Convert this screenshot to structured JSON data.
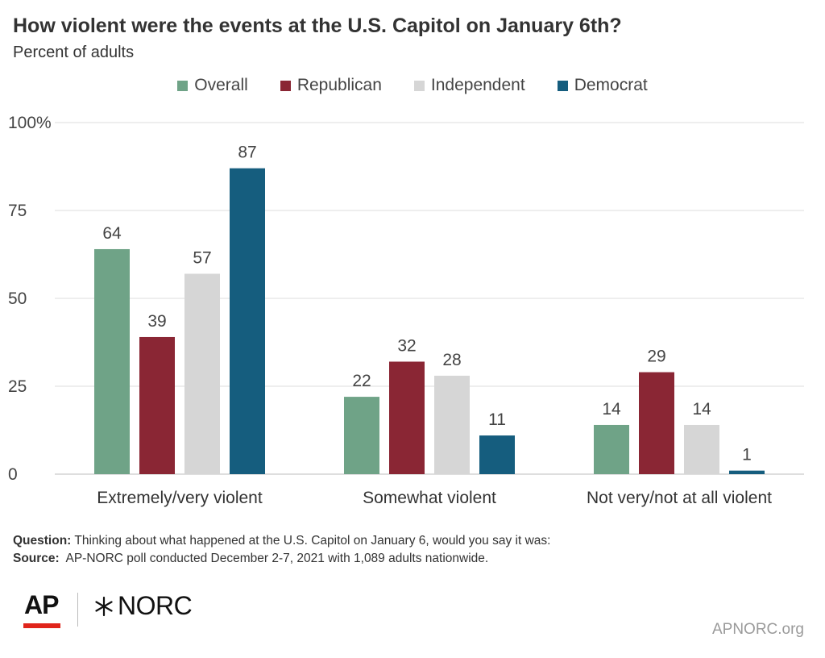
{
  "header": {
    "title": "How violent were the events at the U.S. Capitol on January 6th?",
    "subtitle": "Percent of adults"
  },
  "chart_data": {
    "type": "bar",
    "categories": [
      "Extremely/very violent",
      "Somewhat violent",
      "Not very/not at all violent"
    ],
    "series": [
      {
        "name": "Overall",
        "color": "#6fa387",
        "values": [
          64,
          22,
          14
        ]
      },
      {
        "name": "Republican",
        "color": "#8a2634",
        "values": [
          39,
          32,
          29
        ]
      },
      {
        "name": "Independent",
        "color": "#d6d6d6",
        "values": [
          57,
          28,
          14
        ]
      },
      {
        "name": "Democrat",
        "color": "#155d7e",
        "values": [
          87,
          11,
          1
        ]
      }
    ],
    "ylim": [
      0,
      100
    ],
    "yticks": [
      "0",
      "25",
      "50",
      "75",
      "100%"
    ],
    "ytick_values": [
      0,
      25,
      50,
      75,
      100
    ],
    "grid": true,
    "legend_position": "top-center",
    "xlabel": "",
    "ylabel": ""
  },
  "notes": {
    "question_label": "Question:",
    "question_text": "Thinking about what happened at the U.S. Capitol on January 6, would you say it was:",
    "source_label": "Source:",
    "source_text": "AP-NORC poll conducted December 2-7, 2021 with 1,089 adults nationwide."
  },
  "footer": {
    "logo_ap": "AP",
    "logo_norc": "NORC",
    "site": "APNORC.org"
  }
}
